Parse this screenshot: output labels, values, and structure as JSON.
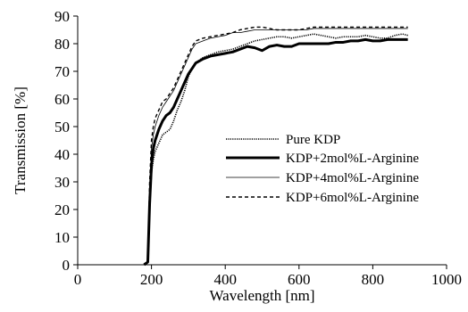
{
  "chart_data": {
    "type": "line",
    "title": "",
    "xlabel": "Wavelength [nm]",
    "ylabel": "Transmission [%]",
    "xlim": [
      0,
      1000
    ],
    "ylim": [
      0,
      90
    ],
    "x_ticks": [
      0,
      200,
      400,
      600,
      800,
      1000
    ],
    "y_ticks": [
      0,
      10,
      20,
      30,
      40,
      50,
      60,
      70,
      80,
      90
    ],
    "x_tick_labels": [
      "0",
      "200",
      "400",
      "600",
      "800",
      "1000"
    ],
    "y_tick_labels": [
      "0",
      "10",
      "20",
      "30",
      "40",
      "50",
      "60",
      "70",
      "80",
      "90"
    ],
    "grid": false,
    "legend_position": "center-right",
    "series": [
      {
        "name": "Pure KDP",
        "style": "dotted-thin",
        "color": "#000000",
        "x": [
          180,
          190,
          195,
          200,
          205,
          210,
          220,
          230,
          240,
          250,
          260,
          270,
          280,
          290,
          300,
          310,
          320,
          340,
          360,
          380,
          400,
          420,
          440,
          460,
          480,
          500,
          520,
          540,
          560,
          580,
          600,
          620,
          640,
          660,
          680,
          700,
          720,
          740,
          760,
          780,
          800,
          820,
          840,
          860,
          880,
          895
        ],
        "y": [
          0,
          1,
          20,
          33,
          38,
          41,
          44,
          47,
          48,
          49,
          52,
          56,
          59,
          63,
          68,
          71,
          73,
          75,
          76,
          77,
          77.5,
          78,
          79,
          80,
          81,
          81.5,
          82,
          82.5,
          82.5,
          82,
          82.5,
          83,
          83.5,
          83,
          82.5,
          82,
          82.5,
          82.5,
          82.5,
          83,
          82.5,
          82,
          82,
          83,
          83.5,
          83
        ]
      },
      {
        "name": "KDP+2mol%L-Arginine",
        "style": "solid-thick",
        "color": "#000000",
        "x": [
          180,
          190,
          195,
          200,
          205,
          210,
          220,
          230,
          240,
          250,
          260,
          270,
          280,
          290,
          300,
          310,
          320,
          340,
          360,
          380,
          400,
          420,
          440,
          460,
          480,
          500,
          520,
          540,
          560,
          580,
          600,
          620,
          640,
          660,
          680,
          700,
          720,
          740,
          760,
          780,
          800,
          820,
          840,
          860,
          880,
          895
        ],
        "y": [
          0,
          1,
          22,
          36,
          42,
          45,
          49,
          52,
          54,
          55,
          57,
          60,
          63,
          66,
          69,
          71,
          73,
          74.5,
          75.5,
          76,
          76.5,
          77,
          78,
          79,
          78.5,
          77.5,
          79,
          79.5,
          79,
          79,
          80,
          80,
          80,
          80,
          80,
          80.5,
          80.5,
          81,
          81,
          81.5,
          81,
          81,
          81.5,
          81.5,
          81.5,
          81.5
        ]
      },
      {
        "name": "KDP+4mol%L-Arginine",
        "style": "solid-thin",
        "color": "#000000",
        "x": [
          180,
          190,
          195,
          200,
          205,
          210,
          220,
          230,
          240,
          250,
          260,
          270,
          280,
          290,
          300,
          310,
          320,
          340,
          360,
          380,
          400,
          420,
          440,
          460,
          480,
          500,
          520,
          540,
          560,
          580,
          600,
          620,
          640,
          660,
          680,
          700,
          720,
          740,
          760,
          780,
          800,
          820,
          840,
          860,
          880,
          895
        ],
        "y": [
          0,
          1,
          28,
          42,
          47,
          50,
          54,
          57,
          59,
          61,
          63,
          66,
          69,
          72,
          75,
          78,
          80,
          81,
          82,
          82.5,
          83,
          84,
          84,
          84.5,
          85,
          85,
          85,
          85,
          85,
          85,
          85,
          85,
          85.5,
          85.5,
          85.5,
          85.5,
          85.5,
          85.5,
          85.5,
          85.5,
          85.5,
          85.5,
          85.5,
          85.5,
          85.5,
          85.5
        ]
      },
      {
        "name": "KDP+6mol%L-Arginine",
        "style": "dashed",
        "color": "#000000",
        "x": [
          180,
          190,
          195,
          200,
          205,
          210,
          220,
          230,
          240,
          250,
          260,
          270,
          280,
          290,
          300,
          310,
          320,
          340,
          360,
          380,
          400,
          420,
          440,
          460,
          480,
          500,
          520,
          540,
          560,
          580,
          600,
          620,
          640,
          660,
          680,
          700,
          720,
          740,
          760,
          780,
          800,
          820,
          840,
          860,
          880,
          895
        ],
        "y": [
          0,
          1,
          30,
          45,
          50,
          53,
          56,
          59,
          60,
          62,
          64,
          67,
          70,
          73,
          76,
          79,
          81,
          82,
          82.5,
          83,
          83.5,
          84,
          85,
          85.5,
          86,
          86,
          85.5,
          85,
          85,
          85,
          85,
          85.5,
          86,
          86,
          86,
          86,
          86,
          86,
          86,
          86,
          86,
          86,
          86,
          86,
          86,
          86
        ]
      }
    ]
  }
}
